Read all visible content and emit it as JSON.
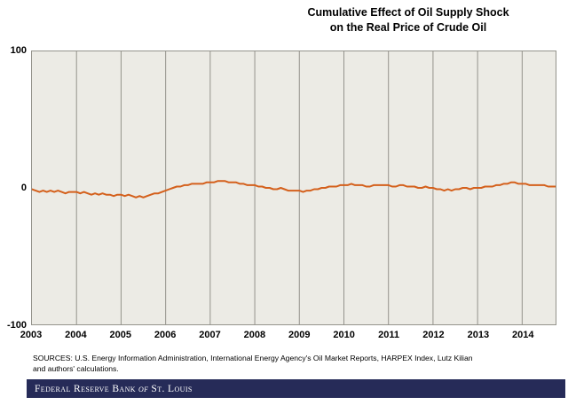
{
  "header": {
    "title_line1": "Cumulative Effect of Oil Supply Shock",
    "title_line2": "on the Real Price of Crude Oil"
  },
  "chart_data": {
    "type": "line",
    "title": "Cumulative Effect of Oil Supply Shock on the Real Price of Crude Oil",
    "xlabel": "",
    "ylabel": "",
    "xlim": [
      2003,
      2014.75
    ],
    "ylim": [
      -100,
      100
    ],
    "y_tick_labels": [
      "100",
      "0",
      "-100"
    ],
    "x_tick_labels": [
      "2003",
      "2004",
      "2005",
      "2006",
      "2007",
      "2008",
      "2009",
      "2010",
      "2011",
      "2012",
      "2013",
      "2014"
    ],
    "grid": "vertical-yearly",
    "legend": "none",
    "plot_bg": "#ecebe5",
    "grid_color": "#94938c",
    "series": [
      {
        "name": "Cumulative effect of oil supply shock on the real price of crude oil",
        "color": "#d4601c",
        "x_start": 2003,
        "x_step": 0.0833333,
        "values": [
          -1,
          -2,
          -3,
          -2,
          -3,
          -2,
          -3,
          -2,
          -3,
          -4,
          -3,
          -3,
          -3,
          -4,
          -3,
          -4,
          -5,
          -4,
          -5,
          -4,
          -5,
          -5,
          -6,
          -5,
          -5,
          -6,
          -5,
          -6,
          -7,
          -6,
          -7,
          -6,
          -5,
          -4,
          -4,
          -3,
          -2,
          -1,
          0,
          1,
          1,
          2,
          2,
          3,
          3,
          3,
          3,
          4,
          4,
          4,
          5,
          5,
          5,
          4,
          4,
          4,
          3,
          3,
          2,
          2,
          2,
          1,
          1,
          0,
          0,
          -1,
          -1,
          0,
          -1,
          -2,
          -2,
          -2,
          -2,
          -3,
          -2,
          -2,
          -1,
          -1,
          0,
          0,
          1,
          1,
          1,
          2,
          2,
          2,
          3,
          2,
          2,
          2,
          1,
          1,
          2,
          2,
          2,
          2,
          2,
          1,
          1,
          2,
          2,
          1,
          1,
          1,
          0,
          0,
          1,
          0,
          0,
          -1,
          -1,
          -2,
          -1,
          -2,
          -1,
          -1,
          0,
          0,
          -1,
          0,
          0,
          0,
          1,
          1,
          1,
          2,
          2,
          3,
          3,
          4,
          4,
          3,
          3,
          3,
          2,
          2,
          2,
          2,
          2,
          1,
          1,
          1
        ]
      }
    ]
  },
  "footer": {
    "sources_line1": "SOURCES: U.S. Energy Information Administration, International Energy Agency's Oil Market Reports, HARPEX Index, Lutz Kilian",
    "sources_line2": "and authors' calculations.",
    "bank_name_part1": "Federal Reserve Bank",
    "bank_name_of": "of",
    "bank_name_part2": "St. Louis",
    "bar_color": "#262b58"
  }
}
